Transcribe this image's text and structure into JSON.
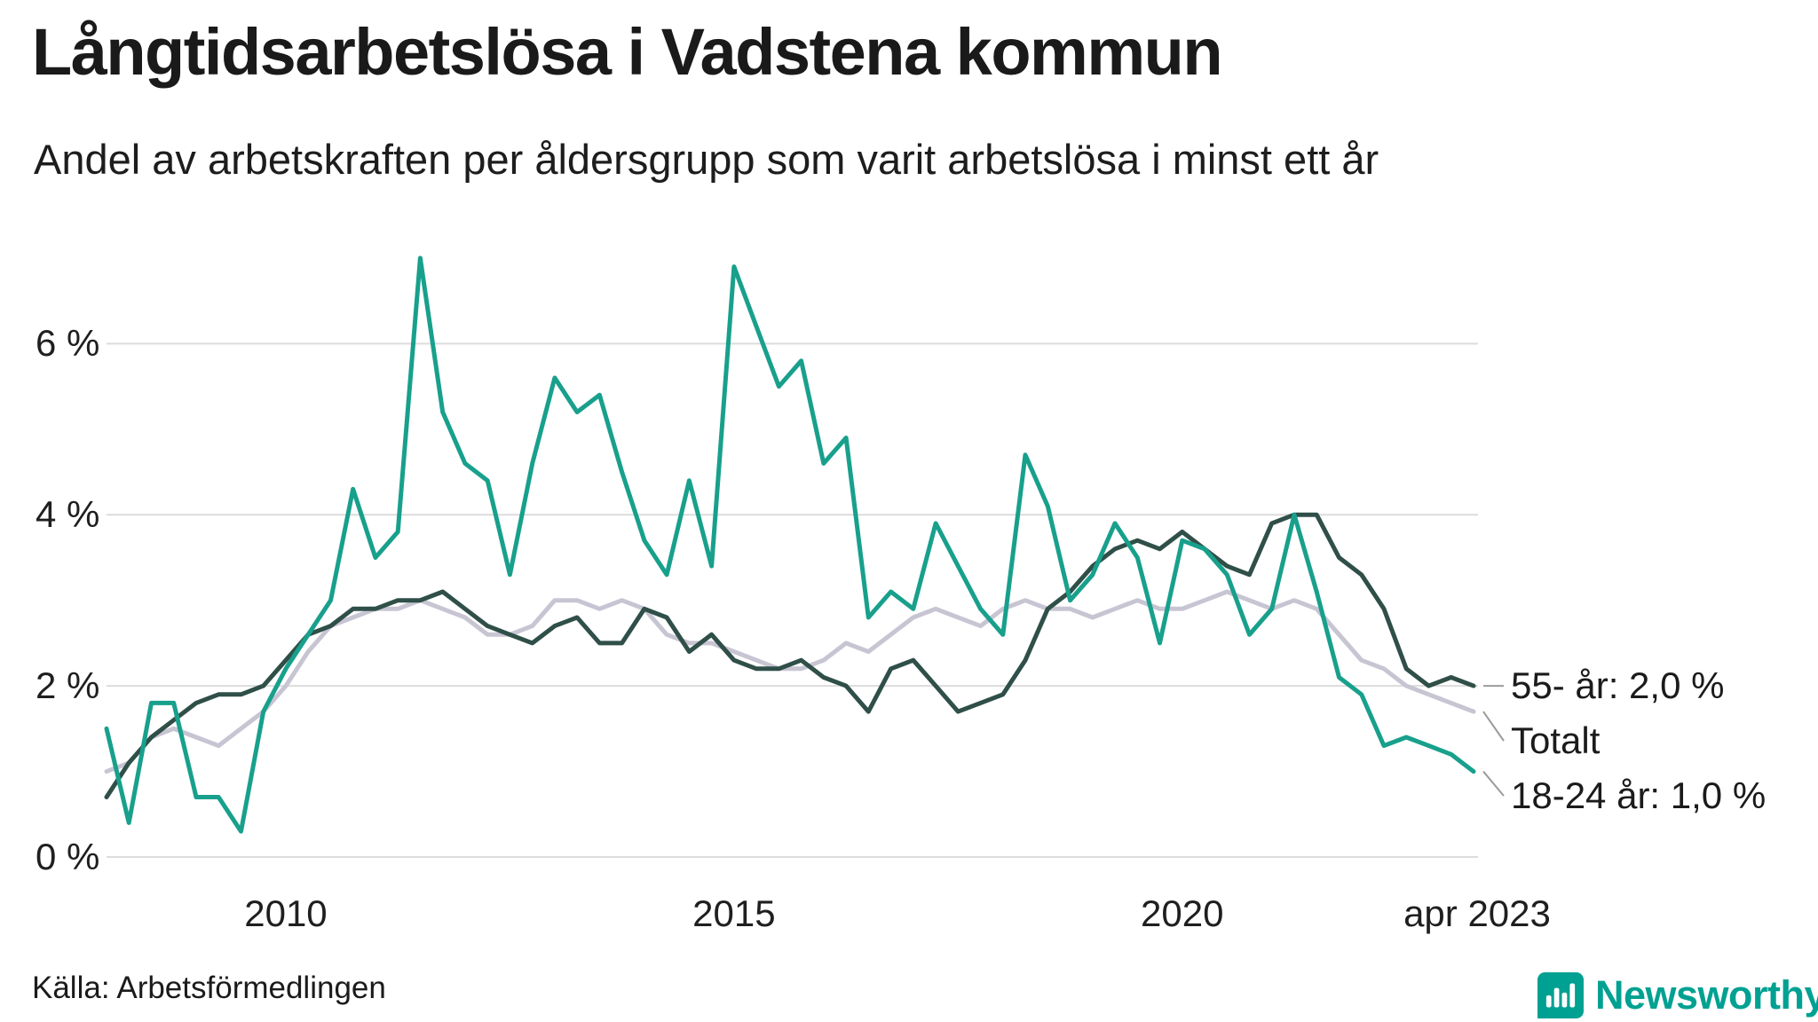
{
  "colors": {
    "background": "#ffffff",
    "grid": "#dcdcdc",
    "text": "#1b1b1b",
    "brand_teal": "#00a192",
    "connector": "#9b9b9b"
  },
  "footer": {
    "source": "Källa: Arbetsförmedlingen",
    "brand": "Newsworthy"
  },
  "chart_data": {
    "type": "line",
    "title": "Långtidsarbetslösa i Vadstena kommun",
    "subtitle": "Andel av arbetskraften per åldersgrupp som varit arbetslösa i minst ett år",
    "source": "Källa: Arbetsförmedlingen",
    "unit": "%",
    "grid": "horizontal",
    "legend_position": "end-of-line labels at right",
    "x_resolution": "quarterly estimates of monthly data, decimal years",
    "xlim": [
      2008,
      2023.3
    ],
    "ylim": [
      0,
      7.3
    ],
    "y_ticks": [
      {
        "value": 0,
        "label": "0 %"
      },
      {
        "value": 2,
        "label": "2 %"
      },
      {
        "value": 4,
        "label": "4 %"
      },
      {
        "value": 6,
        "label": "6 %"
      }
    ],
    "x_ticks": [
      {
        "value": 2010,
        "label": "2010"
      },
      {
        "value": 2015,
        "label": "2015"
      },
      {
        "value": 2020,
        "label": "2020"
      },
      {
        "value": 2023.29,
        "label": "apr 2023"
      }
    ],
    "x": [
      2008,
      2008.25,
      2008.5,
      2008.75,
      2009,
      2009.25,
      2009.5,
      2009.75,
      2010,
      2010.25,
      2010.5,
      2010.75,
      2011,
      2011.25,
      2011.5,
      2011.75,
      2012,
      2012.25,
      2012.5,
      2012.75,
      2013,
      2013.25,
      2013.5,
      2013.75,
      2014,
      2014.25,
      2014.5,
      2014.75,
      2015,
      2015.25,
      2015.5,
      2015.75,
      2016,
      2016.25,
      2016.5,
      2016.75,
      2017,
      2017.25,
      2017.5,
      2017.75,
      2018,
      2018.25,
      2018.5,
      2018.75,
      2019,
      2019.25,
      2019.5,
      2019.75,
      2020,
      2020.25,
      2020.5,
      2020.75,
      2021,
      2021.25,
      2021.5,
      2021.75,
      2022,
      2022.25,
      2022.5,
      2022.75,
      2023,
      2023.25
    ],
    "series": [
      {
        "name": "Totalt",
        "color": "#c8c5d3",
        "end_label": "Totalt",
        "values": [
          1.0,
          1.1,
          1.4,
          1.5,
          1.4,
          1.3,
          1.5,
          1.7,
          2.0,
          2.4,
          2.7,
          2.8,
          2.9,
          2.9,
          3.0,
          2.9,
          2.8,
          2.6,
          2.6,
          2.7,
          3.0,
          3.0,
          2.9,
          3.0,
          2.9,
          2.6,
          2.5,
          2.5,
          2.4,
          2.3,
          2.2,
          2.2,
          2.3,
          2.5,
          2.4,
          2.6,
          2.8,
          2.9,
          2.8,
          2.7,
          2.9,
          3.0,
          2.9,
          2.9,
          2.8,
          2.9,
          3.0,
          2.9,
          2.9,
          3.0,
          3.1,
          3.0,
          2.9,
          3.0,
          2.9,
          2.6,
          2.3,
          2.2,
          2.0,
          1.9,
          1.8,
          1.7
        ]
      },
      {
        "name": "55- år",
        "color": "#2f4f48",
        "end_label": "55- år: 2,0 %",
        "values": [
          0.7,
          1.1,
          1.4,
          1.6,
          1.8,
          1.9,
          1.9,
          2.0,
          2.3,
          2.6,
          2.7,
          2.9,
          2.9,
          3.0,
          3.0,
          3.1,
          2.9,
          2.7,
          2.6,
          2.5,
          2.7,
          2.8,
          2.5,
          2.5,
          2.9,
          2.8,
          2.4,
          2.6,
          2.3,
          2.2,
          2.2,
          2.3,
          2.1,
          2.0,
          1.7,
          2.2,
          2.3,
          2.0,
          1.7,
          1.8,
          1.9,
          2.3,
          2.9,
          3.1,
          3.4,
          3.6,
          3.7,
          3.6,
          3.8,
          3.6,
          3.4,
          3.3,
          3.9,
          4.0,
          4.0,
          3.5,
          3.3,
          2.9,
          2.2,
          2.0,
          2.1,
          2.0
        ]
      },
      {
        "name": "18-24 år",
        "color": "#18a08c",
        "end_label": "18-24 år: 1,0 %",
        "values": [
          1.5,
          0.4,
          1.8,
          1.8,
          0.7,
          0.7,
          0.3,
          1.7,
          2.2,
          2.6,
          3.0,
          4.3,
          3.5,
          3.8,
          7.0,
          5.2,
          4.6,
          4.4,
          3.3,
          4.6,
          5.6,
          5.2,
          5.4,
          4.5,
          3.7,
          3.3,
          4.4,
          3.4,
          6.9,
          6.2,
          5.5,
          5.8,
          4.6,
          4.9,
          2.8,
          3.1,
          2.9,
          3.9,
          3.4,
          2.9,
          2.6,
          4.7,
          4.1,
          3.0,
          3.3,
          3.9,
          3.5,
          2.5,
          3.7,
          3.6,
          3.3,
          2.6,
          2.9,
          4.0,
          3.1,
          2.1,
          1.9,
          1.3,
          1.4,
          1.3,
          1.2,
          1.0
        ]
      }
    ]
  }
}
